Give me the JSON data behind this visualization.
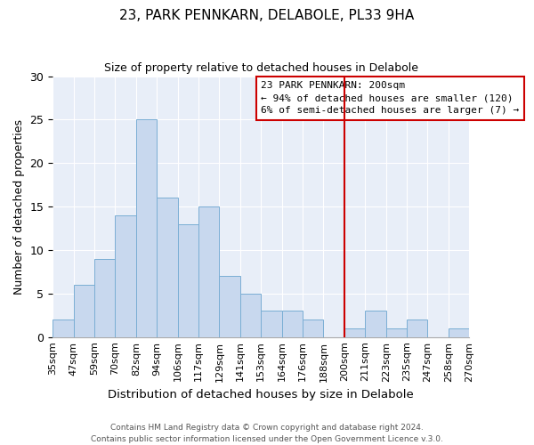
{
  "title": "23, PARK PENNKARN, DELABOLE, PL33 9HA",
  "subtitle": "Size of property relative to detached houses in Delabole",
  "xlabel": "Distribution of detached houses by size in Delabole",
  "ylabel": "Number of detached properties",
  "footer_line1": "Contains HM Land Registry data © Crown copyright and database right 2024.",
  "footer_line2": "Contains public sector information licensed under the Open Government Licence v.3.0.",
  "bin_labels": [
    "35sqm",
    "47sqm",
    "59sqm",
    "70sqm",
    "82sqm",
    "94sqm",
    "106sqm",
    "117sqm",
    "129sqm",
    "141sqm",
    "153sqm",
    "164sqm",
    "176sqm",
    "188sqm",
    "200sqm",
    "211sqm",
    "223sqm",
    "235sqm",
    "247sqm",
    "258sqm",
    "270sqm"
  ],
  "bar_heights": [
    2,
    6,
    9,
    14,
    25,
    16,
    13,
    15,
    7,
    5,
    3,
    3,
    2,
    0,
    1,
    3,
    1,
    2,
    0,
    1
  ],
  "bar_color": "#c8d8ee",
  "bar_edge_color": "#7aaed4",
  "vline_x_index": 14,
  "vline_color": "#cc0000",
  "legend_title": "23 PARK PENNKARN: 200sqm",
  "legend_line1": "← 94% of detached houses are smaller (120)",
  "legend_line2": "6% of semi-detached houses are larger (7) →",
  "legend_box_color": "#cc0000",
  "bg_color": "#e8eef8",
  "ylim": [
    0,
    30
  ],
  "yticks": [
    0,
    5,
    10,
    15,
    20,
    25,
    30
  ]
}
